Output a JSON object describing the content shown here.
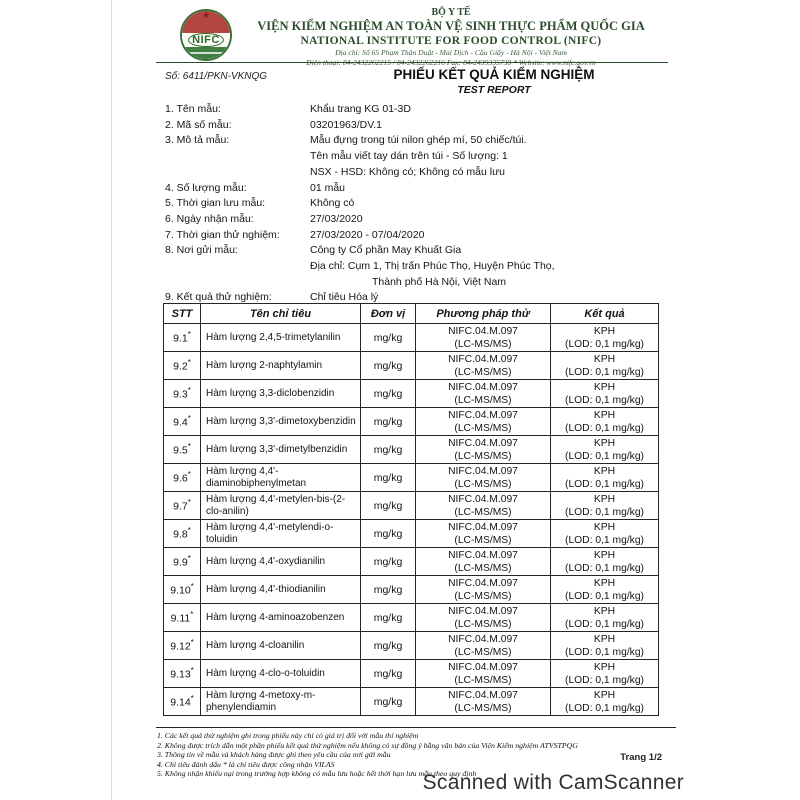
{
  "header": {
    "ministry": "BỘ Y TẾ",
    "institute_vi": "VIỆN KIỂM NGHIỆM AN TOÀN VỆ SINH THỰC PHẨM QUỐC GIA",
    "institute_en": "NATIONAL INSTITUTE FOR FOOD CONTROL (NIFC)",
    "address": "Địa chỉ: Số 65 Phạm Thận Duật - Mai Dịch - Cầu Giấy - Hà Nội - Việt Nam",
    "contact": "Điện thoại: 84-2432262215 / 84-2432262216  Fax: 84-2439335738 * Website: www.nifc.gov.vn",
    "logo_text": "NIFC",
    "logo_colors": {
      "red": "#b2463e",
      "green": "#417e41",
      "ring": "#3a743a"
    }
  },
  "document": {
    "number": "Số: 6411/PKN-VKNQG",
    "title": "PHIẾU KẾT QUẢ KIỂM NGHIỆM",
    "subtitle": "TEST REPORT"
  },
  "fields": [
    {
      "label": "1. Tên mẫu:",
      "values": [
        "Khẩu trang KG 01-3D"
      ]
    },
    {
      "label": "2. Mã số mẫu:",
      "values": [
        "03201963/DV.1"
      ]
    },
    {
      "label": "3. Mô tả mẫu:",
      "values": [
        "Mẫu đựng trong túi nilon ghép mí, 50 chiếc/túi.",
        "Tên mẫu viết tay dán trên túi - Số lượng: 1",
        "NSX - HSD: Không có; Không có mẫu lưu"
      ]
    },
    {
      "label": "4. Số lượng mẫu:",
      "values": [
        "01 mẫu"
      ]
    },
    {
      "label": "5. Thời gian lưu mẫu:",
      "values": [
        "Không có"
      ]
    },
    {
      "label": "6. Ngày nhận mẫu:",
      "values": [
        "27/03/2020"
      ]
    },
    {
      "label": "7. Thời gian thử nghiệm:",
      "values": [
        "27/03/2020 - 07/04/2020"
      ]
    },
    {
      "label": "8. Nơi gửi mẫu:",
      "values": [
        "Công ty Cổ phần May Khuất Gia",
        "Địa chỉ: Cụm 1, Thị trấn Phúc Thọ, Huyện Phúc Thọ,",
        "Thành phố Hà Nội, Việt Nam"
      ]
    },
    {
      "label": "9. Kết quả thử nghiệm:",
      "values": [
        "Chỉ tiêu Hóa lý"
      ]
    }
  ],
  "table": {
    "headers": [
      "STT",
      "Tên chỉ tiêu",
      "Đơn vị",
      "Phương pháp thử",
      "Kết quả"
    ],
    "rows": [
      {
        "stt": "9.1",
        "mark": "*",
        "name": "Hàm lượng 2,4,5-trimetylanilin",
        "unit": "mg/kg",
        "method": [
          "NIFC.04.M.097",
          "(LC-MS/MS)"
        ],
        "result": [
          "KPH",
          "(LOD: 0,1 mg/kg)"
        ]
      },
      {
        "stt": "9.2",
        "mark": "*",
        "name": "Hàm lượng 2-naphtylamin",
        "unit": "mg/kg",
        "method": [
          "NIFC.04.M.097",
          "(LC-MS/MS)"
        ],
        "result": [
          "KPH",
          "(LOD: 0,1 mg/kg)"
        ]
      },
      {
        "stt": "9.3",
        "mark": "*",
        "name": "Hàm lượng 3,3-diclobenzidin",
        "unit": "mg/kg",
        "method": [
          "NIFC.04.M.097",
          "(LC-MS/MS)"
        ],
        "result": [
          "KPH",
          "(LOD: 0,1 mg/kg)"
        ]
      },
      {
        "stt": "9.4",
        "mark": "*",
        "name": "Hàm lượng 3,3'-dimetoxybenzidin",
        "unit": "mg/kg",
        "method": [
          "NIFC.04.M.097",
          "(LC-MS/MS)"
        ],
        "result": [
          "KPH",
          "(LOD: 0,1 mg/kg)"
        ]
      },
      {
        "stt": "9.5",
        "mark": "*",
        "name": "Hàm lượng 3,3'-dimetylbenzidin",
        "unit": "mg/kg",
        "method": [
          "NIFC.04.M.097",
          "(LC-MS/MS)"
        ],
        "result": [
          "KPH",
          "(LOD: 0,1 mg/kg)"
        ]
      },
      {
        "stt": "9.6",
        "mark": "*",
        "name": "Hàm lượng 4,4'-diaminobiphenylmetan",
        "unit": "mg/kg",
        "method": [
          "NIFC.04.M.097",
          "(LC-MS/MS)"
        ],
        "result": [
          "KPH",
          "(LOD: 0,1 mg/kg)"
        ]
      },
      {
        "stt": "9.7",
        "mark": "*",
        "name": "Hàm lượng 4,4'-metylen-bis-(2-clo-anilin)",
        "unit": "mg/kg",
        "method": [
          "NIFC.04.M.097",
          "(LC-MS/MS)"
        ],
        "result": [
          "KPH",
          "(LOD: 0,1 mg/kg)"
        ]
      },
      {
        "stt": "9.8",
        "mark": "*",
        "name": "Hàm lượng 4,4'-metylendi-o-toluidin",
        "unit": "mg/kg",
        "method": [
          "NIFC.04.M.097",
          "(LC-MS/MS)"
        ],
        "result": [
          "KPH",
          "(LOD: 0,1 mg/kg)"
        ]
      },
      {
        "stt": "9.9",
        "mark": "*",
        "name": "Hàm lượng 4,4'-oxydianilin",
        "unit": "mg/kg",
        "method": [
          "NIFC.04.M.097",
          "(LC-MS/MS)"
        ],
        "result": [
          "KPH",
          "(LOD: 0,1 mg/kg)"
        ]
      },
      {
        "stt": "9.10",
        "mark": "*",
        "name": "Hàm lượng 4,4'-thiodianilin",
        "unit": "mg/kg",
        "method": [
          "NIFC.04.M.097",
          "(LC-MS/MS)"
        ],
        "result": [
          "KPH",
          "(LOD: 0,1 mg/kg)"
        ]
      },
      {
        "stt": "9.11",
        "mark": "*",
        "name": "Hàm lượng 4-aminoazobenzen",
        "unit": "mg/kg",
        "method": [
          "NIFC.04.M.097",
          "(LC-MS/MS)"
        ],
        "result": [
          "KPH",
          "(LOD: 0,1 mg/kg)"
        ]
      },
      {
        "stt": "9.12",
        "mark": "*",
        "name": "Hàm lượng 4-cloanilin",
        "unit": "mg/kg",
        "method": [
          "NIFC.04.M.097",
          "(LC-MS/MS)"
        ],
        "result": [
          "KPH",
          "(LOD: 0,1 mg/kg)"
        ]
      },
      {
        "stt": "9.13",
        "mark": "*",
        "name": "Hàm lượng 4-clo-o-toluidin",
        "unit": "mg/kg",
        "method": [
          "NIFC.04.M.097",
          "(LC-MS/MS)"
        ],
        "result": [
          "KPH",
          "(LOD: 0,1 mg/kg)"
        ]
      },
      {
        "stt": "9.14",
        "mark": "*",
        "name": "Hàm lượng 4-metoxy-m-phenylendiamin",
        "unit": "mg/kg",
        "method": [
          "NIFC.04.M.097",
          "(LC-MS/MS)"
        ],
        "result": [
          "KPH",
          "(LOD: 0,1 mg/kg)"
        ]
      }
    ]
  },
  "footnotes": [
    "1. Các kết quả thử nghiệm ghi trong phiếu này chỉ có giá trị đối với mẫu thí nghiệm",
    "2. Không được trích dẫn một phần phiếu kết quả thử nghiệm nếu không có sự đồng ý bằng văn bản của Viện Kiểm nghiệm ATVSTPQG",
    "3. Thông tin về mẫu và khách hàng được ghi theo yêu cầu của nơi gửi mẫu",
    "4. Chỉ tiêu đánh dấu * là chỉ tiêu được công nhận VILAS",
    "5. Không nhận khiếu nại trong trường hợp không có mẫu lưu hoặc hết thời hạn lưu mẫu theo quy định"
  ],
  "page_number": "Trang 1/2",
  "scanner_label": "Scanned with CamScanner"
}
